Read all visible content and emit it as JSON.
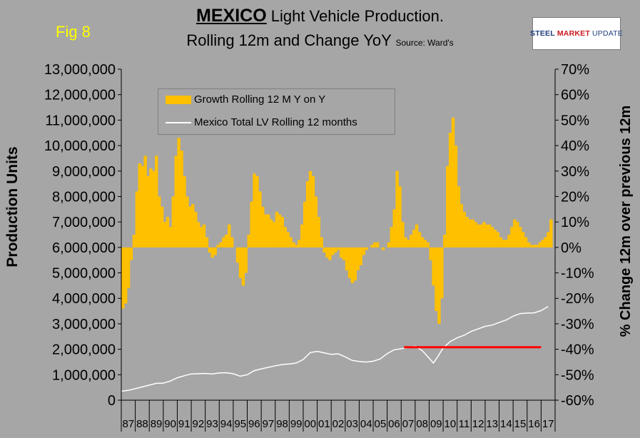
{
  "fig_label": "Fig 8",
  "title": {
    "country": "MEXICO",
    "line1_rest": " Light Vehicle Production.",
    "line2": "Rolling 12m and Change YoY ",
    "source": "Source: Ward's"
  },
  "logo": {
    "steel": "STEEL",
    "market": "MARKET",
    "update": "UPDATE"
  },
  "chart_data": {
    "type": "bar",
    "ylabel": "Production Units",
    "y2label": "% Change 12m over previous 12m",
    "ylim": [
      0,
      13000000
    ],
    "y2lim": [
      -60,
      70
    ],
    "yticks": [
      "0",
      "1,000,000",
      "2,000,000",
      "3,000,000",
      "4,000,000",
      "5,000,000",
      "6,000,000",
      "7,000,000",
      "8,000,000",
      "9,000,000",
      "10,000,000",
      "11,000,000",
      "12,000,000",
      "13,000,000"
    ],
    "y2ticks": [
      "-60%",
      "-50%",
      "-40%",
      "-30%",
      "-20%",
      "-10%",
      "0%",
      "10%",
      "20%",
      "30%",
      "40%",
      "50%",
      "60%",
      "70%"
    ],
    "xlim": [
      1987,
      2018
    ],
    "categories": [
      "87",
      "88",
      "89",
      "90",
      "91",
      "92",
      "93",
      "94",
      "95",
      "96",
      "97",
      "98",
      "99",
      "00",
      "01",
      "02",
      "03",
      "04",
      "05",
      "06",
      "07",
      "08",
      "09",
      "10",
      "11",
      "12",
      "13",
      "14",
      "15",
      "16",
      "17"
    ],
    "grid": false,
    "legend_position": "top-left",
    "series": [
      {
        "name": "Growth Rolling 12 M Y on Y",
        "kind": "bar",
        "axis": "right",
        "color": "#ffc000",
        "points": [
          [
            1987.0,
            -24
          ],
          [
            1987.2,
            -22
          ],
          [
            1987.4,
            -16
          ],
          [
            1987.6,
            -5
          ],
          [
            1987.8,
            5
          ],
          [
            1988.0,
            22
          ],
          [
            1988.2,
            33
          ],
          [
            1988.4,
            32
          ],
          [
            1988.6,
            36
          ],
          [
            1988.8,
            28
          ],
          [
            1989.0,
            31
          ],
          [
            1989.2,
            30
          ],
          [
            1989.4,
            36
          ],
          [
            1989.6,
            20
          ],
          [
            1989.8,
            16
          ],
          [
            1990.0,
            10
          ],
          [
            1990.2,
            12
          ],
          [
            1990.4,
            8
          ],
          [
            1990.6,
            20
          ],
          [
            1990.8,
            36
          ],
          [
            1991.0,
            43
          ],
          [
            1991.2,
            38
          ],
          [
            1991.4,
            28
          ],
          [
            1991.6,
            20
          ],
          [
            1991.8,
            16
          ],
          [
            1992.0,
            17
          ],
          [
            1992.2,
            14
          ],
          [
            1992.4,
            10
          ],
          [
            1992.6,
            8
          ],
          [
            1992.8,
            9
          ],
          [
            1993.0,
            4
          ],
          [
            1993.2,
            -2
          ],
          [
            1993.4,
            -4
          ],
          [
            1993.6,
            -3
          ],
          [
            1993.8,
            1
          ],
          [
            1994.0,
            2
          ],
          [
            1994.2,
            4
          ],
          [
            1994.4,
            5
          ],
          [
            1994.6,
            9
          ],
          [
            1994.8,
            4
          ],
          [
            1995.0,
            0
          ],
          [
            1995.2,
            -6
          ],
          [
            1995.4,
            -12
          ],
          [
            1995.6,
            -15
          ],
          [
            1995.8,
            -10
          ],
          [
            1996.0,
            5
          ],
          [
            1996.2,
            18
          ],
          [
            1996.4,
            29
          ],
          [
            1996.6,
            28
          ],
          [
            1996.8,
            22
          ],
          [
            1997.0,
            16
          ],
          [
            1997.2,
            13
          ],
          [
            1997.4,
            13
          ],
          [
            1997.6,
            11
          ],
          [
            1997.8,
            10
          ],
          [
            1998.0,
            14
          ],
          [
            1998.2,
            13
          ],
          [
            1998.4,
            12
          ],
          [
            1998.6,
            8
          ],
          [
            1998.8,
            6
          ],
          [
            1999.0,
            4
          ],
          [
            1999.2,
            2
          ],
          [
            1999.4,
            1
          ],
          [
            1999.6,
            3
          ],
          [
            1999.8,
            9
          ],
          [
            2000.0,
            18
          ],
          [
            2000.2,
            26
          ],
          [
            2000.4,
            30
          ],
          [
            2000.6,
            28
          ],
          [
            2000.8,
            20
          ],
          [
            2001.0,
            12
          ],
          [
            2001.2,
            4
          ],
          [
            2001.4,
            -2
          ],
          [
            2001.6,
            -4
          ],
          [
            2001.8,
            -5
          ],
          [
            2002.0,
            -3
          ],
          [
            2002.2,
            -2
          ],
          [
            2002.4,
            -1
          ],
          [
            2002.6,
            -4
          ],
          [
            2002.8,
            -5
          ],
          [
            2003.0,
            -9
          ],
          [
            2003.2,
            -12
          ],
          [
            2003.4,
            -14
          ],
          [
            2003.6,
            -13
          ],
          [
            2003.8,
            -9
          ],
          [
            2004.0,
            -7
          ],
          [
            2004.2,
            -3
          ],
          [
            2004.4,
            -1
          ],
          [
            2004.6,
            0
          ],
          [
            2004.8,
            1
          ],
          [
            2005.0,
            2
          ],
          [
            2005.2,
            2
          ],
          [
            2005.4,
            0
          ],
          [
            2005.6,
            -1
          ],
          [
            2005.8,
            0
          ],
          [
            2006.0,
            2
          ],
          [
            2006.2,
            8
          ],
          [
            2006.4,
            15
          ],
          [
            2006.6,
            30
          ],
          [
            2006.8,
            24
          ],
          [
            2007.0,
            10
          ],
          [
            2007.2,
            4
          ],
          [
            2007.4,
            3
          ],
          [
            2007.6,
            5
          ],
          [
            2007.8,
            7
          ],
          [
            2008.0,
            9
          ],
          [
            2008.2,
            6
          ],
          [
            2008.4,
            4
          ],
          [
            2008.6,
            3
          ],
          [
            2008.8,
            2
          ],
          [
            2009.0,
            -5
          ],
          [
            2009.2,
            -15
          ],
          [
            2009.4,
            -25
          ],
          [
            2009.6,
            -30
          ],
          [
            2009.8,
            -20
          ],
          [
            2010.0,
            5
          ],
          [
            2010.2,
            32
          ],
          [
            2010.4,
            45
          ],
          [
            2010.6,
            51
          ],
          [
            2010.8,
            40
          ],
          [
            2011.0,
            24
          ],
          [
            2011.2,
            17
          ],
          [
            2011.4,
            14
          ],
          [
            2011.6,
            12
          ],
          [
            2011.8,
            11
          ],
          [
            2012.0,
            11
          ],
          [
            2012.2,
            10
          ],
          [
            2012.4,
            9
          ],
          [
            2012.6,
            9
          ],
          [
            2012.8,
            10
          ],
          [
            2013.0,
            9
          ],
          [
            2013.2,
            9
          ],
          [
            2013.4,
            8
          ],
          [
            2013.6,
            7
          ],
          [
            2013.8,
            6
          ],
          [
            2014.0,
            4
          ],
          [
            2014.2,
            3
          ],
          [
            2014.4,
            3
          ],
          [
            2014.6,
            5
          ],
          [
            2014.8,
            8
          ],
          [
            2015.0,
            11
          ],
          [
            2015.2,
            10
          ],
          [
            2015.4,
            8
          ],
          [
            2015.6,
            6
          ],
          [
            2015.8,
            4
          ],
          [
            2016.0,
            2
          ],
          [
            2016.2,
            1
          ],
          [
            2016.4,
            1
          ],
          [
            2016.6,
            1
          ],
          [
            2016.8,
            2
          ],
          [
            2017.0,
            3
          ],
          [
            2017.2,
            4
          ],
          [
            2017.4,
            6
          ],
          [
            2017.6,
            11
          ]
        ]
      },
      {
        "name": "Mexico Total LV Rolling 12 months",
        "kind": "line",
        "axis": "left",
        "color": "#ffffff",
        "points": [
          [
            1987.0,
            350000
          ],
          [
            1987.5,
            390000
          ],
          [
            1988.0,
            450000
          ],
          [
            1988.5,
            520000
          ],
          [
            1989.0,
            590000
          ],
          [
            1989.5,
            660000
          ],
          [
            1990.0,
            670000
          ],
          [
            1990.5,
            750000
          ],
          [
            1991.0,
            880000
          ],
          [
            1991.5,
            960000
          ],
          [
            1992.0,
            1030000
          ],
          [
            1992.5,
            1040000
          ],
          [
            1993.0,
            1050000
          ],
          [
            1993.5,
            1030000
          ],
          [
            1994.0,
            1070000
          ],
          [
            1994.5,
            1080000
          ],
          [
            1995.0,
            1040000
          ],
          [
            1995.5,
            940000
          ],
          [
            1996.0,
            1000000
          ],
          [
            1996.5,
            1160000
          ],
          [
            1997.0,
            1230000
          ],
          [
            1997.5,
            1290000
          ],
          [
            1998.0,
            1350000
          ],
          [
            1998.5,
            1400000
          ],
          [
            1999.0,
            1420000
          ],
          [
            1999.5,
            1460000
          ],
          [
            2000.0,
            1600000
          ],
          [
            2000.5,
            1870000
          ],
          [
            2001.0,
            1920000
          ],
          [
            2001.5,
            1860000
          ],
          [
            2002.0,
            1800000
          ],
          [
            2002.5,
            1820000
          ],
          [
            2003.0,
            1700000
          ],
          [
            2003.5,
            1560000
          ],
          [
            2004.0,
            1520000
          ],
          [
            2004.5,
            1500000
          ],
          [
            2005.0,
            1530000
          ],
          [
            2005.5,
            1620000
          ],
          [
            2006.0,
            1830000
          ],
          [
            2006.5,
            1980000
          ],
          [
            2007.0,
            2020000
          ],
          [
            2007.5,
            2070000
          ],
          [
            2008.0,
            2120000
          ],
          [
            2008.5,
            1950000
          ],
          [
            2009.0,
            1650000
          ],
          [
            2009.3,
            1460000
          ],
          [
            2009.6,
            1700000
          ],
          [
            2010.0,
            2050000
          ],
          [
            2010.5,
            2300000
          ],
          [
            2011.0,
            2450000
          ],
          [
            2011.5,
            2550000
          ],
          [
            2012.0,
            2700000
          ],
          [
            2012.5,
            2800000
          ],
          [
            2013.0,
            2900000
          ],
          [
            2013.5,
            2950000
          ],
          [
            2014.0,
            3050000
          ],
          [
            2014.5,
            3150000
          ],
          [
            2015.0,
            3300000
          ],
          [
            2015.5,
            3400000
          ],
          [
            2016.0,
            3420000
          ],
          [
            2016.5,
            3430000
          ],
          [
            2017.0,
            3520000
          ],
          [
            2017.5,
            3680000
          ]
        ]
      }
    ],
    "reference_line": {
      "color": "#ff0000",
      "y": 2080000,
      "x_start": 2007.2,
      "x_end": 2017.0
    }
  }
}
